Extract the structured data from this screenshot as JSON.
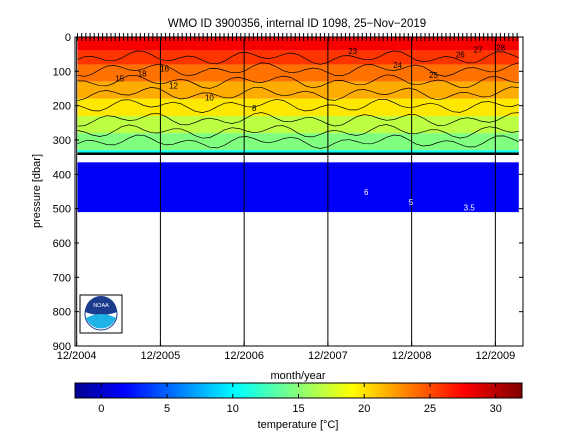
{
  "chart_data": [
    {
      "type": "heatmap",
      "title": "WMO ID 3900356, internal ID 1098, 25−Nov−2019",
      "xlabel": "month/year",
      "ylabel": "pressure [dbar]",
      "x_tick_labels": [
        "12/2004",
        "12/2005",
        "12/2006",
        "12/2007",
        "12/2008",
        "12/2009"
      ],
      "x_ticks_years": [
        2004.92,
        2005.92,
        2006.92,
        2007.92,
        2008.92,
        2009.92
      ],
      "xlim": [
        2004.9,
        2010.25
      ],
      "y_ticks": [
        0,
        100,
        200,
        300,
        400,
        500,
        600,
        700,
        800,
        900
      ],
      "ylim": [
        900,
        0
      ],
      "grid": false,
      "profile_times": [
        2004.93,
        2004.98,
        2005.03,
        2005.08,
        2005.13,
        2005.18,
        2005.23,
        2005.28,
        2005.33,
        2005.38,
        2005.43,
        2005.48,
        2005.53,
        2005.58,
        2005.63,
        2005.68,
        2005.73,
        2005.78,
        2005.83,
        2005.88,
        2005.93,
        2005.98,
        2006.03,
        2006.08,
        2006.13,
        2006.18,
        2006.23,
        2006.28,
        2006.33,
        2006.38,
        2006.43,
        2006.48,
        2006.53,
        2006.58,
        2006.63,
        2006.68,
        2006.73,
        2006.78,
        2006.83,
        2006.88,
        2006.93,
        2006.98,
        2007.03,
        2007.08,
        2007.13,
        2007.18,
        2007.23,
        2007.28,
        2007.33,
        2007.38,
        2007.43,
        2007.48,
        2007.53,
        2007.58,
        2007.63,
        2007.68,
        2007.73,
        2007.78,
        2007.83,
        2007.88,
        2007.93,
        2007.98,
        2008.03,
        2008.08,
        2008.13,
        2008.18,
        2008.23,
        2008.28,
        2008.33,
        2008.38,
        2008.43,
        2008.48,
        2008.53,
        2008.58,
        2008.63,
        2008.68,
        2008.73,
        2008.78,
        2008.83,
        2008.88,
        2008.93,
        2008.98,
        2009.03,
        2009.08,
        2009.13,
        2009.18,
        2009.23,
        2009.28,
        2009.33,
        2009.38,
        2009.43,
        2009.48,
        2009.53,
        2009.58,
        2009.63,
        2009.68,
        2009.73,
        2009.78,
        2009.83,
        2009.88,
        2009.93,
        2009.98,
        2010.03,
        2010.08,
        2010.13,
        2010.18
      ],
      "temperature_bands": [
        {
          "p_top": 0,
          "p_bottom": 40,
          "temp": 28
        },
        {
          "p_top": 40,
          "p_bottom": 80,
          "temp": 26
        },
        {
          "p_top": 80,
          "p_bottom": 130,
          "temp": 24
        },
        {
          "p_top": 130,
          "p_bottom": 180,
          "temp": 22
        },
        {
          "p_top": 180,
          "p_bottom": 230,
          "temp": 20
        },
        {
          "p_top": 230,
          "p_bottom": 280,
          "temp": 17
        },
        {
          "p_top": 280,
          "p_bottom": 330,
          "temp": 15
        },
        {
          "p_top": 330,
          "p_bottom": 340,
          "temp": 11
        },
        {
          "p_top": 365,
          "p_bottom": 510,
          "temp": 2
        }
      ],
      "contour_labels": [
        "23",
        "24",
        "25",
        "26",
        "27",
        "28",
        "15",
        "18",
        "16",
        "12",
        "10",
        "8",
        "6",
        "5",
        "3.5"
      ],
      "colorbar": {
        "label": "temperature [°C]",
        "range": [
          -2,
          32
        ],
        "ticks": [
          0,
          5,
          10,
          15,
          20,
          25,
          30
        ]
      }
    }
  ],
  "logo": {
    "text": "NOAA"
  }
}
